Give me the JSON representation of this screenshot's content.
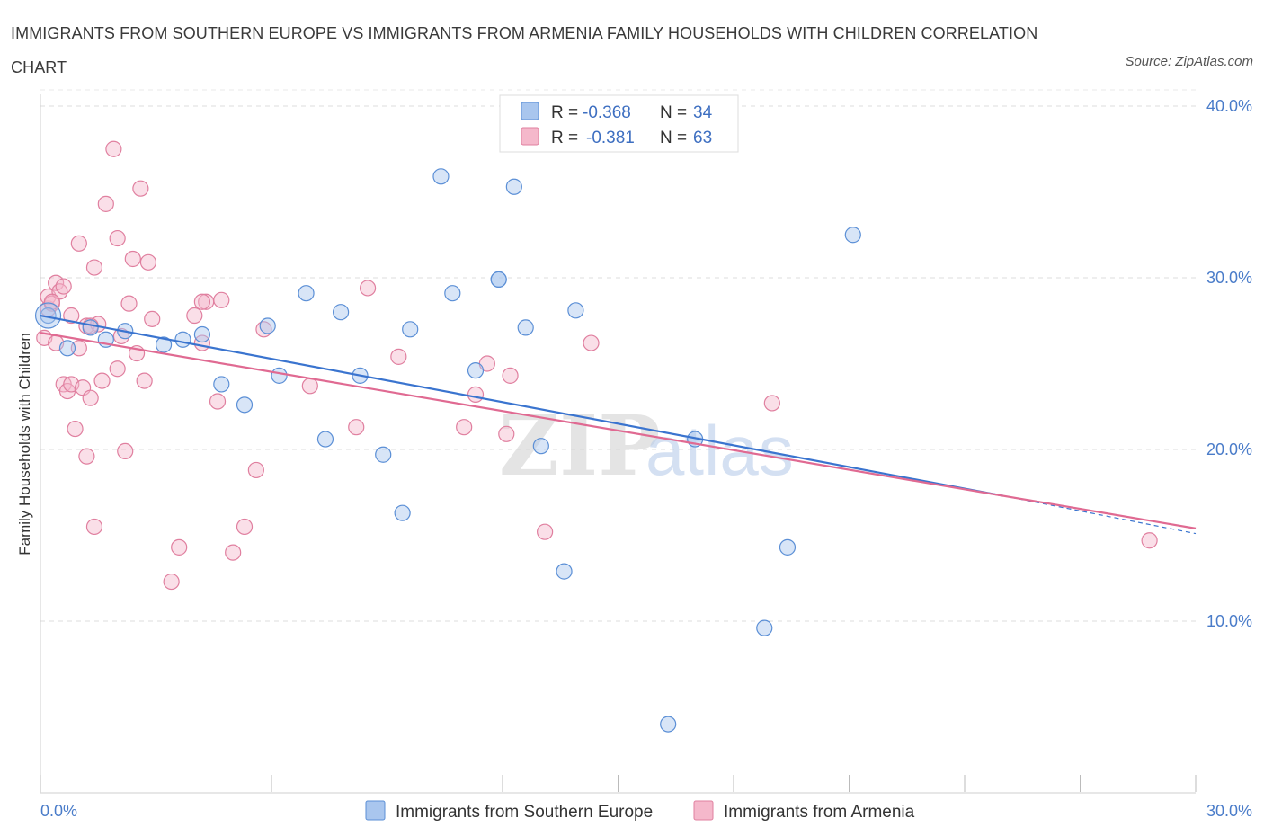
{
  "chart_data": {
    "type": "scatter",
    "title": "IMMIGRANTS FROM SOUTHERN EUROPE VS IMMIGRANTS FROM ARMENIA FAMILY HOUSEHOLDS WITH CHILDREN CORRELATION CHART",
    "source": "Source: ZipAtlas.com",
    "ylabel": "Family Households with Children",
    "xlim": [
      0,
      30
    ],
    "ylim": [
      0,
      40
    ],
    "x_tick_labels": [
      "0.0%",
      "30.0%"
    ],
    "y_ticks": [
      10,
      20,
      30,
      40
    ],
    "y_tick_labels": [
      "10.0%",
      "20.0%",
      "30.0%",
      "40.0%"
    ],
    "watermark": "ZIPatlas",
    "legend": {
      "r_label": "R =",
      "n_label": "N =",
      "entries": [
        {
          "r": "-0.368",
          "n": "34",
          "color": "#a9c6ee"
        },
        {
          "r": "-0.381",
          "n": "63",
          "color": "#f5b8cb"
        }
      ]
    },
    "series": [
      {
        "name": "Immigrants from Southern Europe",
        "color": "#a9c6ee",
        "stroke": "#5b8fd6",
        "line_color": "#3a74cf",
        "trend": {
          "x0": 0,
          "y0": 27.8,
          "x1": 25.0,
          "y1": 17.3,
          "dash_to_x": 30,
          "dash_to_y": 15.1
        },
        "points": [
          [
            0.2,
            27.8
          ],
          [
            0.7,
            25.9
          ],
          [
            1.3,
            27.1
          ],
          [
            1.7,
            26.4
          ],
          [
            2.2,
            26.9
          ],
          [
            3.2,
            26.1
          ],
          [
            3.7,
            26.4
          ],
          [
            4.2,
            26.7
          ],
          [
            4.7,
            23.8
          ],
          [
            5.3,
            22.6
          ],
          [
            5.9,
            27.2
          ],
          [
            6.2,
            24.3
          ],
          [
            6.9,
            29.1
          ],
          [
            7.4,
            20.6
          ],
          [
            7.8,
            28.0
          ],
          [
            8.3,
            24.3
          ],
          [
            8.9,
            19.7
          ],
          [
            9.4,
            16.3
          ],
          [
            9.6,
            27.0
          ],
          [
            10.4,
            35.9
          ],
          [
            10.7,
            29.1
          ],
          [
            11.3,
            24.6
          ],
          [
            11.9,
            29.9
          ],
          [
            12.3,
            35.3
          ],
          [
            12.6,
            27.1
          ],
          [
            13.0,
            20.2
          ],
          [
            13.6,
            12.9
          ],
          [
            13.9,
            28.1
          ],
          [
            16.3,
            4.0
          ],
          [
            17.0,
            20.6
          ],
          [
            18.8,
            9.6
          ],
          [
            19.4,
            14.3
          ],
          [
            21.1,
            32.5
          ],
          [
            11.9,
            29.9
          ]
        ]
      },
      {
        "name": "Immigrants from Armenia",
        "color": "#f5b8cb",
        "stroke": "#e07f9f",
        "line_color": "#e06a92",
        "trend": {
          "x0": 0,
          "y0": 26.8,
          "x1": 30,
          "y1": 15.4
        },
        "points": [
          [
            0.1,
            26.5
          ],
          [
            0.2,
            28.2
          ],
          [
            0.2,
            28.9
          ],
          [
            0.3,
            28.5
          ],
          [
            0.4,
            29.7
          ],
          [
            0.4,
            26.2
          ],
          [
            0.5,
            29.2
          ],
          [
            0.6,
            23.8
          ],
          [
            0.6,
            29.5
          ],
          [
            0.7,
            23.4
          ],
          [
            0.8,
            23.8
          ],
          [
            0.8,
            27.8
          ],
          [
            0.9,
            21.2
          ],
          [
            1.0,
            25.9
          ],
          [
            1.0,
            32.0
          ],
          [
            1.1,
            23.6
          ],
          [
            1.2,
            27.2
          ],
          [
            1.2,
            19.6
          ],
          [
            1.3,
            23.0
          ],
          [
            1.4,
            15.5
          ],
          [
            1.4,
            30.6
          ],
          [
            1.5,
            27.3
          ],
          [
            1.6,
            24.0
          ],
          [
            1.7,
            34.3
          ],
          [
            1.9,
            37.5
          ],
          [
            2.0,
            32.3
          ],
          [
            2.0,
            24.7
          ],
          [
            2.1,
            26.6
          ],
          [
            2.2,
            19.9
          ],
          [
            2.3,
            28.5
          ],
          [
            2.4,
            31.1
          ],
          [
            2.5,
            25.6
          ],
          [
            2.6,
            35.2
          ],
          [
            2.7,
            24.0
          ],
          [
            2.8,
            30.9
          ],
          [
            2.9,
            27.6
          ],
          [
            3.4,
            12.3
          ],
          [
            3.6,
            14.3
          ],
          [
            4.0,
            27.8
          ],
          [
            4.2,
            26.2
          ],
          [
            4.3,
            28.6
          ],
          [
            4.6,
            22.8
          ],
          [
            4.7,
            28.7
          ],
          [
            5.0,
            14.0
          ],
          [
            5.3,
            15.5
          ],
          [
            5.6,
            18.8
          ],
          [
            5.8,
            27.0
          ],
          [
            7.0,
            23.7
          ],
          [
            8.2,
            21.3
          ],
          [
            8.5,
            29.4
          ],
          [
            9.3,
            25.4
          ],
          [
            11.0,
            21.3
          ],
          [
            11.6,
            25.0
          ],
          [
            11.3,
            23.2
          ],
          [
            12.1,
            20.9
          ],
          [
            12.2,
            24.3
          ],
          [
            13.1,
            15.2
          ],
          [
            14.3,
            26.2
          ],
          [
            19.0,
            22.7
          ],
          [
            28.8,
            14.7
          ],
          [
            0.3,
            28.6
          ],
          [
            4.2,
            28.6
          ],
          [
            1.3,
            27.2
          ]
        ]
      }
    ]
  }
}
